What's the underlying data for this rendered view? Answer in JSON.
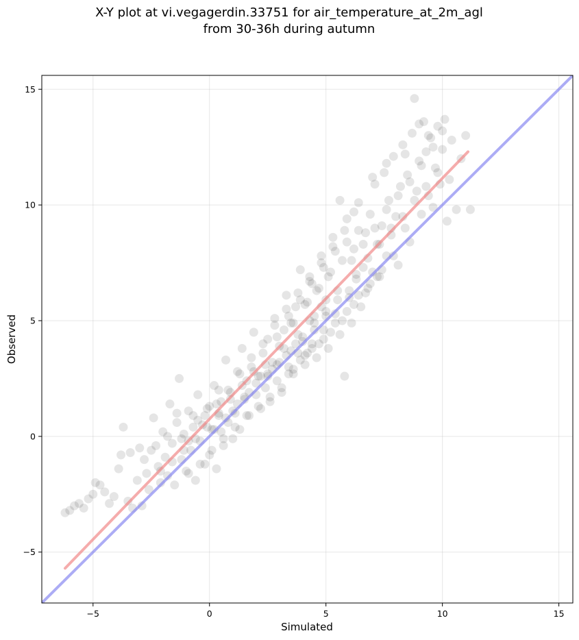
{
  "chart_data": {
    "type": "scatter",
    "title_lines": [
      "X-Y plot at vi.vegagerdin.33751 for air_temperature_at_2m_agl",
      "from 30-36h during autumn"
    ],
    "xlabel": "Simulated",
    "ylabel": "Observed",
    "xlim": [
      -7.2,
      15.6
    ],
    "ylim": [
      -7.2,
      15.6
    ],
    "xticks": [
      -5,
      0,
      5,
      10,
      15
    ],
    "yticks": [
      -5,
      0,
      5,
      10,
      15
    ],
    "xtick_labels": [
      "−5",
      "0",
      "5",
      "10",
      "15"
    ],
    "ytick_labels": [
      "−5",
      "0",
      "5",
      "10",
      "15"
    ],
    "grid": true,
    "point_color": "#000000",
    "point_alpha": 0.1,
    "series": [
      {
        "kind": "scatter",
        "points": [
          [
            -6.2,
            -3.3
          ],
          [
            -6.0,
            -3.2
          ],
          [
            -5.8,
            -3.0
          ],
          [
            -5.6,
            -2.9
          ],
          [
            -5.4,
            -3.1
          ],
          [
            -5.2,
            -2.7
          ],
          [
            -5.0,
            -2.5
          ],
          [
            -4.9,
            -2.0
          ],
          [
            -4.7,
            -2.1
          ],
          [
            -4.5,
            -2.4
          ],
          [
            -4.3,
            -2.9
          ],
          [
            -4.1,
            -2.6
          ],
          [
            -3.9,
            -1.4
          ],
          [
            -3.8,
            -0.8
          ],
          [
            -3.7,
            0.4
          ],
          [
            -3.5,
            -2.8
          ],
          [
            -3.3,
            -3.1
          ],
          [
            -3.1,
            -1.9
          ],
          [
            -3.0,
            -0.5
          ],
          [
            -2.9,
            -3.0
          ],
          [
            -2.7,
            -1.6
          ],
          [
            -2.6,
            -2.3
          ],
          [
            -2.5,
            -0.6
          ],
          [
            -2.4,
            0.8
          ],
          [
            -2.2,
            -1.3
          ],
          [
            -2.1,
            -2.0
          ],
          [
            -2.0,
            0.2
          ],
          [
            -1.9,
            -0.9
          ],
          [
            -1.8,
            -1.7
          ],
          [
            -1.7,
            1.4
          ],
          [
            -1.6,
            -0.3
          ],
          [
            -1.5,
            -2.1
          ],
          [
            -1.4,
            0.6
          ],
          [
            -1.3,
            2.5
          ],
          [
            -1.2,
            -1.0
          ],
          [
            -1.1,
            0.1
          ],
          [
            -1.0,
            -1.5
          ],
          [
            -0.9,
            1.1
          ],
          [
            -0.8,
            -0.6
          ],
          [
            -0.7,
            0.9
          ],
          [
            -0.6,
            -1.9
          ],
          [
            -0.5,
            1.8
          ],
          [
            -0.4,
            -0.2
          ],
          [
            -0.3,
            0.5
          ],
          [
            -0.2,
            -1.2
          ],
          [
            -0.1,
            1.2
          ],
          [
            0.0,
            -0.8
          ],
          [
            0.1,
            0.3
          ],
          [
            0.2,
            2.2
          ],
          [
            0.3,
            -1.4
          ],
          [
            0.4,
            0.9
          ],
          [
            0.5,
            1.5
          ],
          [
            0.6,
            -0.4
          ],
          [
            0.7,
            3.3
          ],
          [
            0.8,
            0.6
          ],
          [
            0.9,
            1.9
          ],
          [
            1.0,
            -0.1
          ],
          [
            1.1,
            1.0
          ],
          [
            1.2,
            2.8
          ],
          [
            1.3,
            0.3
          ],
          [
            1.4,
            3.8
          ],
          [
            1.5,
            1.6
          ],
          [
            1.6,
            2.4
          ],
          [
            1.7,
            0.9
          ],
          [
            1.8,
            3.0
          ],
          [
            1.9,
            4.5
          ],
          [
            2.0,
            1.8
          ],
          [
            2.1,
            2.6
          ],
          [
            2.2,
            1.2
          ],
          [
            2.3,
            3.6
          ],
          [
            2.4,
            2.1
          ],
          [
            2.5,
            4.2
          ],
          [
            2.6,
            1.5
          ],
          [
            2.7,
            3.2
          ],
          [
            2.8,
            5.1
          ],
          [
            2.9,
            2.4
          ],
          [
            3.0,
            3.9
          ],
          [
            3.1,
            1.9
          ],
          [
            3.2,
            4.6
          ],
          [
            3.3,
            6.1
          ],
          [
            3.4,
            3.0
          ],
          [
            3.5,
            4.9
          ],
          [
            3.6,
            2.7
          ],
          [
            3.7,
            5.6
          ],
          [
            3.8,
            3.6
          ],
          [
            3.9,
            7.2
          ],
          [
            4.0,
            4.3
          ],
          [
            4.1,
            3.1
          ],
          [
            4.2,
            5.8
          ],
          [
            4.3,
            6.7
          ],
          [
            4.4,
            4.0
          ],
          [
            4.5,
            5.2
          ],
          [
            4.6,
            3.4
          ],
          [
            4.7,
            6.4
          ],
          [
            4.8,
            7.8
          ],
          [
            4.9,
            4.6
          ],
          [
            5.0,
            5.9
          ],
          [
            5.1,
            3.8
          ],
          [
            5.2,
            7.1
          ],
          [
            5.3,
            8.6
          ],
          [
            5.4,
            5.3
          ],
          [
            5.5,
            6.3
          ],
          [
            5.6,
            4.4
          ],
          [
            5.7,
            7.6
          ],
          [
            5.8,
            2.6
          ],
          [
            5.9,
            9.4
          ],
          [
            6.0,
            6.0
          ],
          [
            6.1,
            4.9
          ],
          [
            6.2,
            8.1
          ],
          [
            6.3,
            6.8
          ],
          [
            6.4,
            10.1
          ],
          [
            6.5,
            5.6
          ],
          [
            6.6,
            7.3
          ],
          [
            6.7,
            8.8
          ],
          [
            6.8,
            6.4
          ],
          [
            6.9,
            9.6
          ],
          [
            7.0,
            7.1
          ],
          [
            7.1,
            10.9
          ],
          [
            7.2,
            8.3
          ],
          [
            7.3,
            6.9
          ],
          [
            7.4,
            9.1
          ],
          [
            7.5,
            11.4
          ],
          [
            7.6,
            7.8
          ],
          [
            7.7,
            10.2
          ],
          [
            7.8,
            8.7
          ],
          [
            7.9,
            12.1
          ],
          [
            8.0,
            9.5
          ],
          [
            8.1,
            7.4
          ],
          [
            8.2,
            10.8
          ],
          [
            8.3,
            12.6
          ],
          [
            8.4,
            9.0
          ],
          [
            8.5,
            11.3
          ],
          [
            8.6,
            8.4
          ],
          [
            8.7,
            13.1
          ],
          [
            8.8,
            14.6
          ],
          [
            8.9,
            10.6
          ],
          [
            9.0,
            11.9
          ],
          [
            9.1,
            9.6
          ],
          [
            9.2,
            13.6
          ],
          [
            9.3,
            12.3
          ],
          [
            9.4,
            10.4
          ],
          [
            9.5,
            12.9
          ],
          [
            9.6,
            9.9
          ],
          [
            9.7,
            11.6
          ],
          [
            9.8,
            13.4
          ],
          [
            9.9,
            10.9
          ],
          [
            10.0,
            12.4
          ],
          [
            10.1,
            13.7
          ],
          [
            10.2,
            9.3
          ],
          [
            10.3,
            11.1
          ],
          [
            10.4,
            12.8
          ],
          [
            10.6,
            9.8
          ],
          [
            10.8,
            12.0
          ],
          [
            11.0,
            13.0
          ],
          [
            11.2,
            9.8
          ],
          [
            0.5,
            0.2
          ],
          [
            1.0,
            1.1
          ],
          [
            1.5,
            1.7
          ],
          [
            2.0,
            2.3
          ],
          [
            2.5,
            2.6
          ],
          [
            3.0,
            3.2
          ],
          [
            3.5,
            3.7
          ],
          [
            4.0,
            4.1
          ],
          [
            4.5,
            4.6
          ],
          [
            5.0,
            5.2
          ],
          [
            3.2,
            3.8
          ],
          [
            3.8,
            4.4
          ],
          [
            4.3,
            5.0
          ],
          [
            4.8,
            5.6
          ],
          [
            2.7,
            2.9
          ],
          [
            2.2,
            2.6
          ],
          [
            1.7,
            1.9
          ],
          [
            1.2,
            1.4
          ],
          [
            0.7,
            0.8
          ],
          [
            0.2,
            0.3
          ],
          [
            3.6,
            4.9
          ],
          [
            4.1,
            5.7
          ],
          [
            4.6,
            6.3
          ],
          [
            5.1,
            6.9
          ],
          [
            3.4,
            2.7
          ],
          [
            3.9,
            3.3
          ],
          [
            4.4,
            3.8
          ],
          [
            4.9,
            4.2
          ],
          [
            5.4,
            4.9
          ],
          [
            5.9,
            5.4
          ],
          [
            6.4,
            6.1
          ],
          [
            6.9,
            6.6
          ],
          [
            7.4,
            7.2
          ],
          [
            7.9,
            7.8
          ],
          [
            2.9,
            4.3
          ],
          [
            3.4,
            5.2
          ],
          [
            3.9,
            5.9
          ],
          [
            4.4,
            6.6
          ],
          [
            4.9,
            7.3
          ],
          [
            5.4,
            8.0
          ],
          [
            5.9,
            8.4
          ],
          [
            6.4,
            8.9
          ],
          [
            2.4,
            3.1
          ],
          [
            1.9,
            2.8
          ],
          [
            1.4,
            2.2
          ],
          [
            0.9,
            1.6
          ],
          [
            0.4,
            1.0
          ],
          [
            -0.1,
            0.4
          ],
          [
            -0.6,
            -0.1
          ],
          [
            -1.1,
            -0.6
          ],
          [
            -1.6,
            -1.1
          ],
          [
            -2.1,
            -1.5
          ],
          [
            4.2,
            3.6
          ],
          [
            4.7,
            4.0
          ],
          [
            5.2,
            4.5
          ],
          [
            5.7,
            5.0
          ],
          [
            6.2,
            5.7
          ],
          [
            6.7,
            6.2
          ],
          [
            7.2,
            6.9
          ],
          [
            3.1,
            2.1
          ],
          [
            3.6,
            2.9
          ],
          [
            4.1,
            3.5
          ],
          [
            2.6,
            1.7
          ],
          [
            2.1,
            1.3
          ],
          [
            1.6,
            0.9
          ],
          [
            1.1,
            0.4
          ],
          [
            0.6,
            -0.1
          ],
          [
            0.1,
            -0.6
          ],
          [
            -0.4,
            -1.2
          ],
          [
            -0.9,
            -1.6
          ],
          [
            3.3,
            5.5
          ],
          [
            3.8,
            6.2
          ],
          [
            4.3,
            6.9
          ],
          [
            4.8,
            7.5
          ],
          [
            5.3,
            8.2
          ],
          [
            5.8,
            8.9
          ],
          [
            2.8,
            4.8
          ],
          [
            2.3,
            4.0
          ],
          [
            1.8,
            3.4
          ],
          [
            1.3,
            2.7
          ],
          [
            0.8,
            2.0
          ],
          [
            0.3,
            1.4
          ],
          [
            -0.2,
            0.9
          ],
          [
            -0.7,
            0.4
          ],
          [
            -1.2,
            -0.1
          ],
          [
            6.1,
            7.6
          ],
          [
            6.6,
            8.3
          ],
          [
            7.1,
            9.0
          ],
          [
            7.6,
            9.8
          ],
          [
            8.1,
            10.4
          ],
          [
            8.6,
            11.0
          ],
          [
            9.1,
            11.7
          ],
          [
            9.6,
            12.5
          ],
          [
            6.3,
            7.0
          ],
          [
            6.8,
            7.7
          ],
          [
            7.3,
            8.3
          ],
          [
            7.8,
            9.0
          ],
          [
            8.3,
            9.5
          ],
          [
            8.8,
            10.2
          ],
          [
            9.3,
            10.8
          ],
          [
            9.8,
            11.4
          ],
          [
            4.5,
            4.9
          ],
          [
            5.0,
            5.4
          ],
          [
            5.5,
            5.9
          ],
          [
            6.0,
            6.3
          ],
          [
            3.7,
            4.0
          ],
          [
            3.3,
            3.5
          ],
          [
            2.9,
            3.1
          ],
          [
            2.5,
            2.7
          ],
          [
            -3.4,
            -0.7
          ],
          [
            -2.8,
            -1.0
          ],
          [
            -2.3,
            -0.4
          ],
          [
            -1.8,
            0.0
          ],
          [
            -1.4,
            1.0
          ],
          [
            -0.9,
            -0.2
          ],
          [
            -0.5,
            0.7
          ],
          [
            0.0,
            1.3
          ],
          [
            0.4,
            2.0
          ],
          [
            5.6,
            10.2
          ],
          [
            6.2,
            9.7
          ],
          [
            7.0,
            11.2
          ],
          [
            7.6,
            11.8
          ],
          [
            8.4,
            12.2
          ],
          [
            9.0,
            13.5
          ],
          [
            9.4,
            13.0
          ],
          [
            10.0,
            13.2
          ]
        ]
      },
      {
        "kind": "line",
        "name": "regression",
        "color": "#ef8080",
        "x": [
          -6.2,
          11.1
        ],
        "y": [
          -5.7,
          12.3
        ]
      },
      {
        "kind": "line",
        "name": "one-to-one",
        "color": "#7f7fef",
        "x": [
          -7.2,
          15.6
        ],
        "y": [
          -7.2,
          15.6
        ]
      }
    ]
  }
}
